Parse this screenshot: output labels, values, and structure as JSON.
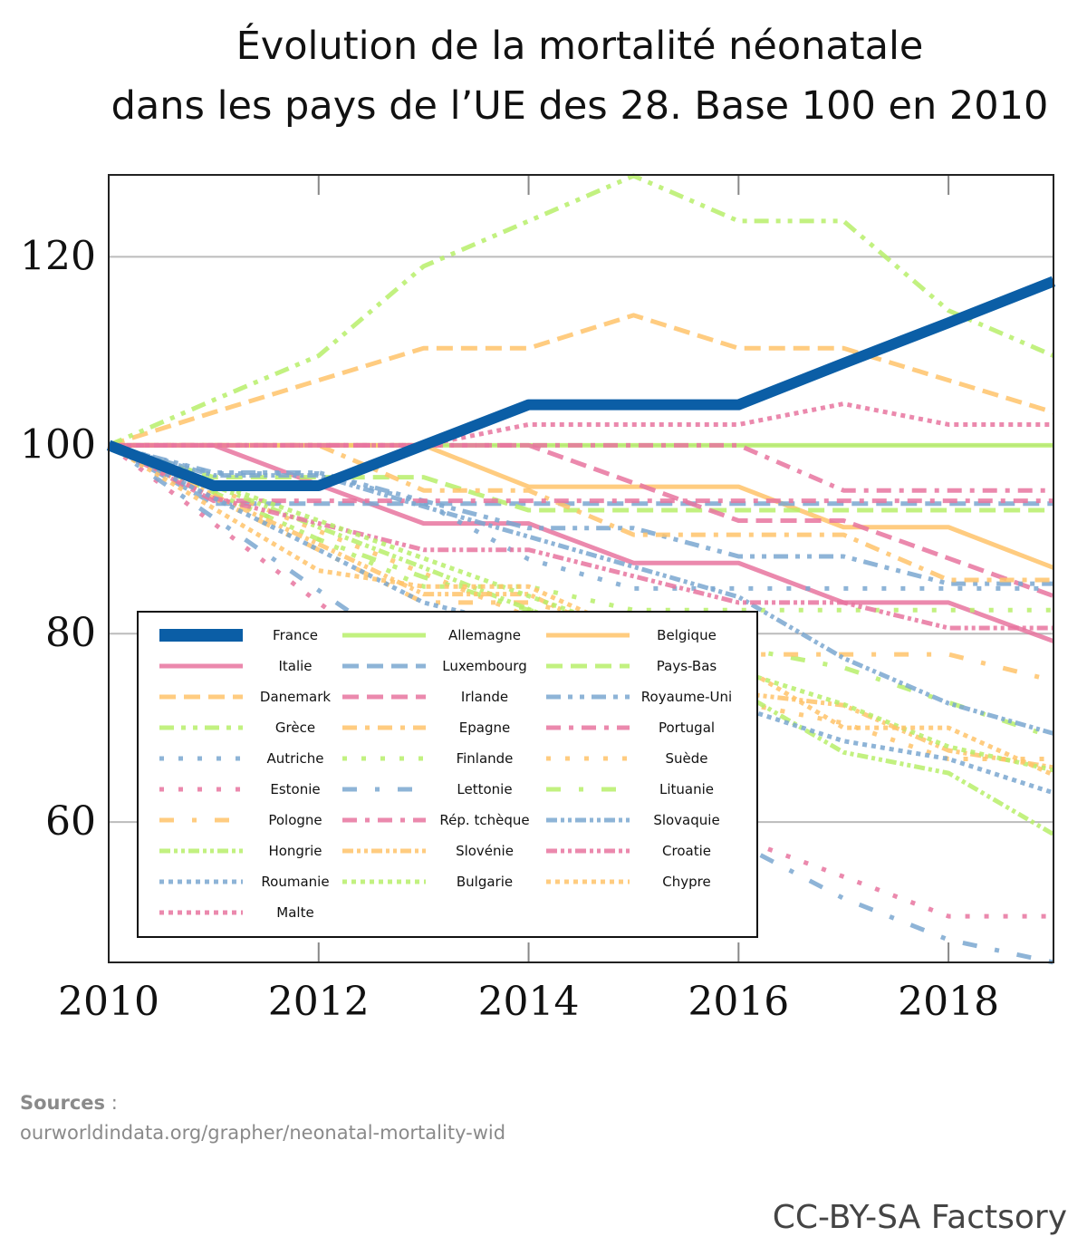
{
  "title_line1": "Évolution de la mortalité néonatale",
  "title_line2": "dans les pays de l’UE des 28. Base 100 en 2010",
  "sources_label": "Sources",
  "sources_sep": " :",
  "sources_url": "ourworldindata.org/grapher/neonatal-mortality-wid",
  "license": "CC-BY-SA Factsory",
  "colors": {
    "france": "#0b5ea6",
    "blue": "#7aa7d0",
    "pink": "#e8749f",
    "orange": "#ffc36a",
    "green": "#b7ef6a"
  },
  "chart_data": {
    "type": "line",
    "title": "Évolution de la mortalité néonatale dans les pays de l’UE des 28. Base 100 en 2010",
    "xlabel": "",
    "ylabel": "",
    "x": [
      2010,
      2011,
      2012,
      2013,
      2014,
      2015,
      2016,
      2017,
      2018,
      2019
    ],
    "xticks": [
      "2010",
      "2012",
      "2014",
      "2016",
      "2018"
    ],
    "yticks": [
      "60",
      "80",
      "100",
      "120"
    ],
    "xlim": [
      2010,
      2019
    ],
    "ylim": [
      45.1,
      128.7
    ],
    "grid": "horizontal",
    "legend_position": "bottom-left inside",
    "series": [
      {
        "name": "France",
        "color": "france",
        "style": "solid",
        "values": [
          100,
          95.7,
          95.7,
          100,
          104.3,
          104.3,
          104.3,
          108.7,
          113,
          117.4
        ]
      },
      {
        "name": "Allemagne",
        "color": "green",
        "style": "solid",
        "values": [
          100,
          100,
          100,
          100,
          100,
          100,
          100,
          100,
          100,
          100
        ]
      },
      {
        "name": "Belgique",
        "color": "orange",
        "style": "solid",
        "values": [
          100,
          100,
          100,
          100,
          95.6,
          95.6,
          95.6,
          91.3,
          91.3,
          87
        ]
      },
      {
        "name": "Italie",
        "color": "pink",
        "style": "solid",
        "values": [
          100,
          100,
          95.8,
          91.7,
          91.7,
          87.5,
          87.5,
          83.3,
          83.3,
          79.2
        ]
      },
      {
        "name": "Luxembourg",
        "color": "blue",
        "style": "dashed",
        "values": [
          100,
          93.8,
          93.8,
          93.8,
          93.8,
          93.8,
          93.8,
          93.8,
          93.8,
          93.8
        ]
      },
      {
        "name": "Pays-Bas",
        "color": "green",
        "style": "dashed",
        "values": [
          100,
          96.6,
          96.6,
          96.6,
          93.1,
          93.1,
          93.1,
          93.1,
          93.1,
          93.1
        ]
      },
      {
        "name": "Danemark",
        "color": "orange",
        "style": "dashed",
        "values": [
          100,
          103.5,
          106.9,
          110.3,
          110.3,
          113.8,
          110.3,
          110.3,
          106.9,
          103.5
        ]
      },
      {
        "name": "Irlande",
        "color": "pink",
        "style": "dashed",
        "values": [
          100,
          100,
          100,
          100,
          100,
          96,
          92,
          92,
          88,
          84
        ]
      },
      {
        "name": "Royaume-Uni",
        "color": "blue",
        "style": "dashdotdot",
        "values": [
          100,
          97.1,
          97.1,
          94.1,
          91.2,
          91.2,
          88.2,
          88.2,
          85.3,
          85.3
        ]
      },
      {
        "name": "Grèce",
        "color": "green",
        "style": "dashdotdot",
        "values": [
          100,
          104.8,
          109.5,
          119,
          123.8,
          128.6,
          123.8,
          123.8,
          114.3,
          109.5
        ]
      },
      {
        "name": "Epagne",
        "color": "orange",
        "style": "dashdot",
        "values": [
          100,
          100,
          100,
          95.2,
          95.2,
          90.5,
          90.5,
          90.5,
          85.7,
          85.7
        ]
      },
      {
        "name": "Portugal",
        "color": "pink",
        "style": "dashdot",
        "values": [
          100,
          100,
          100,
          100,
          100,
          100,
          100,
          95.2,
          95.2,
          95.2
        ]
      },
      {
        "name": "Autriche",
        "color": "blue",
        "style": "loosedot",
        "values": [
          100,
          97,
          97,
          93.9,
          87.9,
          84.8,
          84.8,
          84.8,
          84.8,
          84.8
        ]
      },
      {
        "name": "Finlande",
        "color": "green",
        "style": "loosedot",
        "values": [
          100,
          95,
          90,
          85,
          85,
          82.5,
          82.5,
          82.5,
          82.5,
          82.5
        ]
      },
      {
        "name": "Suède",
        "color": "orange",
        "style": "loosedot",
        "values": [
          100,
          95.5,
          90.9,
          86.4,
          81.8,
          77.3,
          72.7,
          70.5,
          66.7,
          66.7
        ]
      },
      {
        "name": "Estonie",
        "color": "pink",
        "style": "loosedot",
        "values": [
          100,
          91.7,
          83.3,
          75,
          66.7,
          62.5,
          58.3,
          54.2,
          50,
          50
        ]
      },
      {
        "name": "Lettonie",
        "color": "blue",
        "style": "loosedashdot",
        "values": [
          100,
          92.3,
          84.6,
          76.9,
          69.2,
          61.5,
          57.7,
          51.9,
          47.5,
          45.1
        ]
      },
      {
        "name": "Lituanie",
        "color": "green",
        "style": "loosedashdot",
        "values": [
          100,
          95,
          90,
          86,
          82.5,
          80,
          78.5,
          76.4,
          72.7,
          69
        ]
      },
      {
        "name": "Pologne",
        "color": "orange",
        "style": "loosedashdot",
        "values": [
          100,
          94.4,
          88.9,
          83.3,
          83.3,
          80.6,
          77.8,
          77.8,
          77.8,
          75
        ]
      },
      {
        "name": "Rép. tchèque",
        "color": "pink",
        "style": "dashdot",
        "values": [
          100,
          94.1,
          94.1,
          94.1,
          94.1,
          94.1,
          94.1,
          94.1,
          94.1,
          94.1
        ]
      },
      {
        "name": "Slovaquie",
        "color": "blue",
        "style": "densedashdotdot",
        "values": [
          100,
          96.8,
          96.8,
          93.5,
          90.3,
          87.1,
          83.9,
          77.4,
          72.6,
          69.4
        ]
      },
      {
        "name": "Hongrie",
        "color": "green",
        "style": "densedashdotdot",
        "values": [
          100,
          95.7,
          91.3,
          87,
          82.6,
          78.3,
          73.9,
          67.4,
          65.2,
          58.7
        ]
      },
      {
        "name": "Slovénie",
        "color": "orange",
        "style": "densedashdotdot",
        "values": [
          100,
          94.7,
          89.5,
          84.2,
          84.2,
          78.9,
          73.7,
          72.4,
          67.6,
          65.8
        ]
      },
      {
        "name": "Croatie",
        "color": "pink",
        "style": "densedashdotdot",
        "values": [
          100,
          94.4,
          91.7,
          88.9,
          88.9,
          86.1,
          83.3,
          83.3,
          80.6,
          80.6
        ]
      },
      {
        "name": "Roumanie",
        "color": "blue",
        "style": "densedot",
        "values": [
          100,
          94.4,
          88.9,
          83.3,
          80.6,
          77.8,
          72.2,
          68.6,
          66.7,
          63.1
        ]
      },
      {
        "name": "Bulgarie",
        "color": "green",
        "style": "densedot",
        "values": [
          100,
          96,
          92,
          88,
          84,
          80,
          76,
          72.5,
          68,
          65.5
        ]
      },
      {
        "name": "Chypre",
        "color": "orange",
        "style": "densedot",
        "values": [
          100,
          93.3,
          86.7,
          85,
          85,
          80,
          76.7,
          70,
          70,
          65
        ]
      },
      {
        "name": "Malte",
        "color": "pink",
        "style": "densedot",
        "values": [
          100,
          100,
          100,
          100,
          102.2,
          102.2,
          102.2,
          104.4,
          102.2,
          102.2
        ]
      }
    ]
  }
}
